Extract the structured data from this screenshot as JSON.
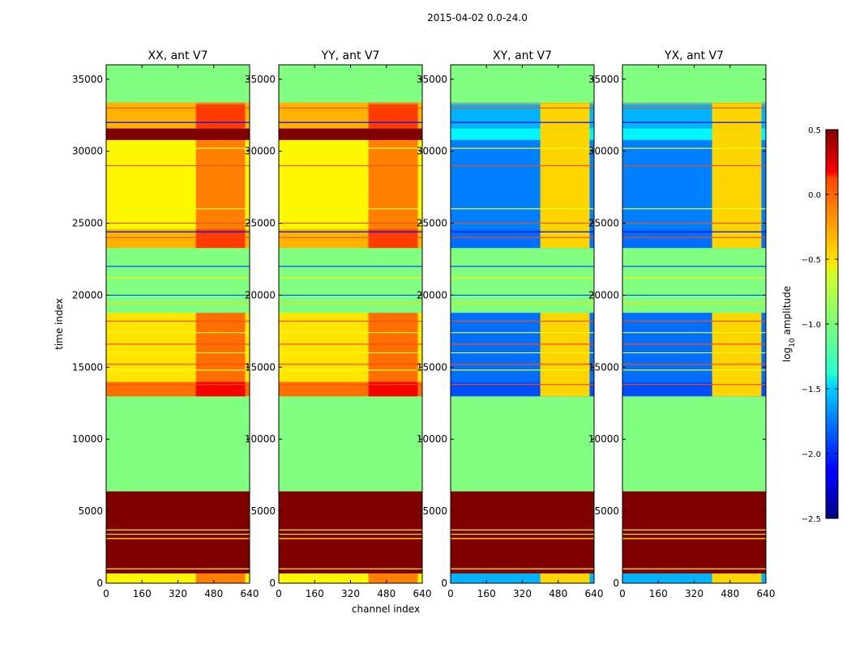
{
  "chart_data": {
    "type": "heatmap",
    "title": "2015-04-02 0.0-24.0",
    "xlabel": "channel index",
    "ylabel": "time index",
    "colorbar_label": "log10 amplitude",
    "colorbar_label_parts": {
      "prefix": "log",
      "subscript": "10",
      "suffix": " amplitude"
    },
    "colormap": "jet",
    "clim": [
      -2.5,
      0.5
    ],
    "colorbar_ticks": [
      0.5,
      0.0,
      -0.5,
      -1.0,
      -1.5,
      -2.0,
      -2.5
    ],
    "colorbar_tick_labels": [
      "0.5",
      "0.0",
      "−0.5",
      "−1.0",
      "−1.5",
      "−2.0",
      "−2.5"
    ],
    "xlim": [
      0,
      640
    ],
    "ylim": [
      0,
      36000
    ],
    "xticks": [
      0,
      160,
      320,
      480,
      640
    ],
    "yticks": [
      0,
      5000,
      10000,
      15000,
      20000,
      25000,
      30000,
      35000
    ],
    "panels": [
      {
        "title": "XX, ant V7",
        "kind": "parallel"
      },
      {
        "title": "YY, ant V7",
        "kind": "parallel"
      },
      {
        "title": "XY, ant V7",
        "kind": "cross"
      },
      {
        "title": "YX, ant V7",
        "kind": "cross"
      }
    ],
    "time_segments": [
      {
        "t0": 0,
        "t1": 700,
        "parallel": -0.6,
        "cross": -1.6
      },
      {
        "t0": 700,
        "t1": 6400,
        "parallel": 0.5,
        "cross": 0.5
      },
      {
        "t0": 6400,
        "t1": 13000,
        "parallel": -1.0,
        "cross": -1.0
      },
      {
        "t0": 13000,
        "t1": 14000,
        "parallel": -0.2,
        "cross": -1.9
      },
      {
        "t0": 14000,
        "t1": 18800,
        "parallel": -0.55,
        "cross": -1.8
      },
      {
        "t0": 18800,
        "t1": 23300,
        "parallel": -1.0,
        "cross": -1.0
      },
      {
        "t0": 23300,
        "t1": 24600,
        "parallel": -0.4,
        "cross": -1.8
      },
      {
        "t0": 24600,
        "t1": 30800,
        "parallel": -0.6,
        "cross": -1.75
      },
      {
        "t0": 30800,
        "t1": 31600,
        "parallel": 0.5,
        "cross": -1.4
      },
      {
        "t0": 31600,
        "t1": 33400,
        "parallel": -0.4,
        "cross": -1.6
      },
      {
        "t0": 33400,
        "t1": 36000,
        "parallel": -1.0,
        "cross": -1.0
      }
    ],
    "channel_band": {
      "c0": 400,
      "c1": 620,
      "parallel_delta": 0.35,
      "cross_value": -0.5
    },
    "flag_lines": [
      {
        "t": 1000,
        "value": -0.6
      },
      {
        "t": 3100,
        "value": -0.6
      },
      {
        "t": 3400,
        "value": -0.6
      },
      {
        "t": 3700,
        "value": -0.6
      },
      {
        "t": 13800,
        "value": -0.1
      },
      {
        "t": 14800,
        "value": -0.7
      },
      {
        "t": 15200,
        "value": -0.1
      },
      {
        "t": 16000,
        "value": -0.7
      },
      {
        "t": 16600,
        "value": -0.1
      },
      {
        "t": 17400,
        "value": -0.7
      },
      {
        "t": 18200,
        "value": -0.1
      },
      {
        "t": 19400,
        "value": -0.5
      },
      {
        "t": 20000,
        "value": -1.9
      },
      {
        "t": 21200,
        "value": -0.6
      },
      {
        "t": 22000,
        "value": -1.9
      },
      {
        "t": 24000,
        "value": -0.1
      },
      {
        "t": 24400,
        "value": -2.1
      },
      {
        "t": 25000,
        "value": -0.1
      },
      {
        "t": 26000,
        "value": -0.7
      },
      {
        "t": 29000,
        "value": -0.1
      },
      {
        "t": 30200,
        "value": -0.7
      },
      {
        "t": 32000,
        "value": -2.1
      },
      {
        "t": 33000,
        "value": -0.1
      },
      {
        "t": 33300,
        "value": -0.4
      }
    ]
  }
}
